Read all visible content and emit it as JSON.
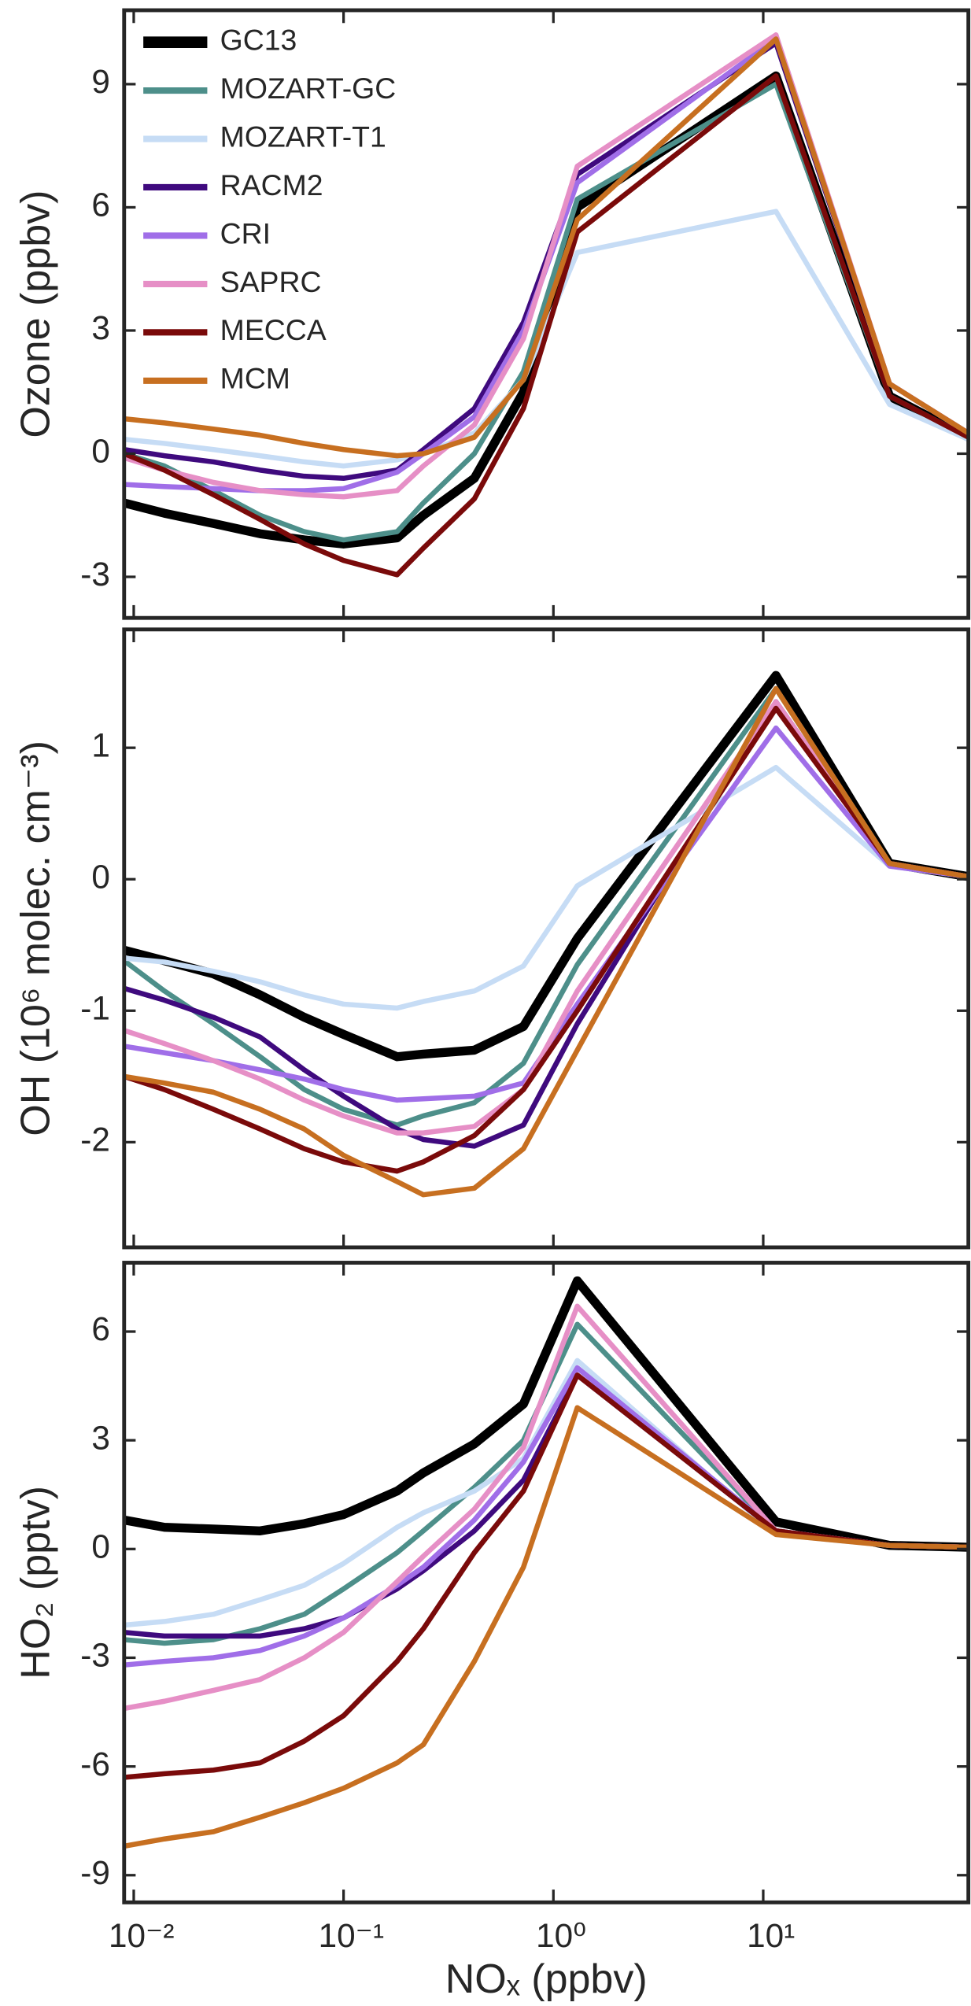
{
  "chart_data": [
    {
      "type": "line",
      "ylabel": "Ozone (ppbv)",
      "log_x": true,
      "legend": "upper left",
      "xlim": [
        0.009,
        95
      ],
      "xticks": [
        0.01,
        0.1,
        1,
        10
      ],
      "ylim": [
        -4,
        10.8
      ],
      "yticks": [
        -3,
        0,
        3,
        6,
        9
      ],
      "x": [
        0.009,
        0.014,
        0.024,
        0.04,
        0.065,
        0.1,
        0.18,
        0.24,
        0.42,
        0.72,
        1.3,
        11.5,
        40,
        95
      ],
      "series": [
        {
          "name": "GC13",
          "color": "#000000",
          "values": [
            -1.2,
            -1.45,
            -1.7,
            -1.95,
            -2.1,
            -2.2,
            -2.05,
            -1.5,
            -0.6,
            1.5,
            6.0,
            9.2,
            1.4,
            0.4
          ]
        },
        {
          "name": "MOZART-GC",
          "color": "#4d8f8a",
          "values": [
            0.0,
            -0.3,
            -0.9,
            -1.5,
            -1.9,
            -2.1,
            -1.9,
            -1.2,
            0.0,
            2.0,
            6.2,
            9.0,
            1.4,
            0.4
          ]
        },
        {
          "name": "MOZART-T1",
          "color": "#c6dcf5",
          "values": [
            0.35,
            0.25,
            0.1,
            -0.05,
            -0.2,
            -0.3,
            -0.15,
            0.0,
            0.5,
            1.8,
            4.9,
            5.9,
            1.2,
            0.35
          ]
        },
        {
          "name": "RACM2",
          "color": "#3f0a7e",
          "values": [
            0.1,
            -0.05,
            -0.2,
            -0.4,
            -0.55,
            -0.6,
            -0.4,
            0.1,
            1.1,
            3.2,
            6.8,
            10.0,
            1.7,
            0.5
          ]
        },
        {
          "name": "CRI",
          "color": "#a06ee8",
          "values": [
            -0.75,
            -0.8,
            -0.85,
            -0.9,
            -0.9,
            -0.85,
            -0.45,
            0.0,
            0.9,
            3.0,
            6.6,
            10.1,
            1.7,
            0.5
          ]
        },
        {
          "name": "SAPRC",
          "color": "#e68fc6",
          "values": [
            -0.1,
            -0.4,
            -0.7,
            -0.9,
            -1.0,
            -1.05,
            -0.9,
            -0.3,
            0.7,
            2.8,
            7.0,
            10.2,
            1.7,
            0.5
          ]
        },
        {
          "name": "MECCA",
          "color": "#7a0a0a",
          "values": [
            0.0,
            -0.4,
            -1.0,
            -1.6,
            -2.2,
            -2.6,
            -2.95,
            -2.3,
            -1.1,
            1.1,
            5.4,
            9.2,
            1.4,
            0.4
          ]
        },
        {
          "name": "MCM",
          "color": "#c76f20",
          "values": [
            0.85,
            0.75,
            0.6,
            0.45,
            0.25,
            0.1,
            -0.05,
            0.0,
            0.4,
            1.8,
            5.7,
            10.1,
            1.7,
            0.5
          ]
        }
      ]
    },
    {
      "type": "line",
      "ylabel": "OH (10⁶ molec. cm⁻³)",
      "log_x": true,
      "xlim": [
        0.009,
        95
      ],
      "xticks": [
        0.01,
        0.1,
        1,
        10
      ],
      "ylim": [
        -2.8,
        1.9
      ],
      "yticks": [
        -2,
        -1,
        0,
        1
      ],
      "x": [
        0.009,
        0.014,
        0.024,
        0.04,
        0.065,
        0.1,
        0.18,
        0.24,
        0.42,
        0.72,
        1.3,
        11.5,
        40,
        95
      ],
      "series": [
        {
          "color": "#000000",
          "values": [
            -0.54,
            -0.62,
            -0.72,
            -0.88,
            -1.05,
            -1.18,
            -1.35,
            -1.33,
            -1.3,
            -1.12,
            -0.45,
            1.55,
            0.12,
            0.02
          ]
        },
        {
          "color": "#4d8f8a",
          "values": [
            -0.62,
            -0.85,
            -1.1,
            -1.35,
            -1.6,
            -1.75,
            -1.87,
            -1.8,
            -1.7,
            -1.4,
            -0.65,
            1.45,
            0.12,
            0.02
          ]
        },
        {
          "color": "#c6dcf5",
          "values": [
            -0.6,
            -0.63,
            -0.7,
            -0.78,
            -0.88,
            -0.95,
            -0.98,
            -0.93,
            -0.85,
            -0.66,
            -0.05,
            0.85,
            0.1,
            0.02
          ]
        },
        {
          "color": "#3f0a7e",
          "values": [
            -0.83,
            -0.92,
            -1.05,
            -1.2,
            -1.45,
            -1.65,
            -1.9,
            -1.98,
            -2.03,
            -1.87,
            -1.1,
            1.35,
            0.12,
            0.02
          ]
        },
        {
          "color": "#a06ee8",
          "values": [
            -1.27,
            -1.32,
            -1.38,
            -1.45,
            -1.52,
            -1.6,
            -1.68,
            -1.67,
            -1.65,
            -1.55,
            -0.95,
            1.15,
            0.1,
            0.02
          ]
        },
        {
          "color": "#e68fc6",
          "values": [
            -1.15,
            -1.25,
            -1.38,
            -1.52,
            -1.68,
            -1.8,
            -1.93,
            -1.93,
            -1.88,
            -1.6,
            -0.85,
            1.35,
            0.12,
            0.02
          ]
        },
        {
          "color": "#7a0a0a",
          "values": [
            -1.5,
            -1.6,
            -1.75,
            -1.9,
            -2.05,
            -2.15,
            -2.22,
            -2.15,
            -1.95,
            -1.6,
            -1.0,
            1.3,
            0.12,
            0.02
          ]
        },
        {
          "color": "#c76f20",
          "values": [
            -1.5,
            -1.55,
            -1.62,
            -1.75,
            -1.9,
            -2.1,
            -2.3,
            -2.4,
            -2.35,
            -2.05,
            -1.3,
            1.45,
            0.12,
            0.02
          ]
        }
      ]
    },
    {
      "type": "line",
      "ylabel": "HO₂ (pptv)",
      "xlabel": "NOₓ (ppbv)",
      "log_x": true,
      "xlim": [
        0.009,
        95
      ],
      "xticks": [
        {
          "value": 0.01,
          "label": "10⁻²"
        },
        {
          "value": 0.1,
          "label": "10⁻¹"
        },
        {
          "value": 1,
          "label": "10⁰"
        },
        {
          "value": 10,
          "label": "10¹"
        }
      ],
      "ylim": [
        -9.75,
        7.9
      ],
      "yticks": [
        -9,
        -6,
        -3,
        0,
        3,
        6
      ],
      "x": [
        0.009,
        0.014,
        0.024,
        0.04,
        0.065,
        0.1,
        0.18,
        0.24,
        0.42,
        0.72,
        1.3,
        11.5,
        40,
        95
      ],
      "series": [
        {
          "color": "#000000",
          "values": [
            0.8,
            0.6,
            0.55,
            0.5,
            0.7,
            0.95,
            1.6,
            2.1,
            2.9,
            4.0,
            7.4,
            0.75,
            0.1,
            0.05
          ]
        },
        {
          "color": "#4d8f8a",
          "values": [
            -2.5,
            -2.6,
            -2.5,
            -2.2,
            -1.8,
            -1.1,
            -0.1,
            0.5,
            1.7,
            3.0,
            6.2,
            0.5,
            0.1,
            0.05
          ]
        },
        {
          "color": "#c6dcf5",
          "values": [
            -2.1,
            -2.0,
            -1.8,
            -1.4,
            -1.0,
            -0.4,
            0.6,
            1.0,
            1.6,
            2.5,
            5.2,
            0.4,
            0.1,
            0.05
          ]
        },
        {
          "color": "#3f0a7e",
          "values": [
            -2.3,
            -2.4,
            -2.4,
            -2.4,
            -2.2,
            -1.9,
            -1.1,
            -0.6,
            0.5,
            1.9,
            4.8,
            0.5,
            0.1,
            0.05
          ]
        },
        {
          "color": "#a06ee8",
          "values": [
            -3.2,
            -3.1,
            -3.0,
            -2.8,
            -2.4,
            -1.9,
            -1.0,
            -0.5,
            0.8,
            2.4,
            5.0,
            0.5,
            0.1,
            0.05
          ]
        },
        {
          "color": "#e68fc6",
          "values": [
            -4.4,
            -4.2,
            -3.9,
            -3.6,
            -3.0,
            -2.3,
            -0.9,
            -0.2,
            1.1,
            2.8,
            6.7,
            0.5,
            0.1,
            0.05
          ]
        },
        {
          "color": "#7a0a0a",
          "values": [
            -6.3,
            -6.2,
            -6.1,
            -5.9,
            -5.3,
            -4.6,
            -3.1,
            -2.2,
            -0.1,
            1.6,
            4.8,
            0.5,
            0.1,
            0.05
          ]
        },
        {
          "color": "#c76f20",
          "values": [
            -8.2,
            -8.0,
            -7.8,
            -7.4,
            -7.0,
            -6.6,
            -5.9,
            -5.4,
            -3.1,
            -0.5,
            3.9,
            0.4,
            0.1,
            0.05
          ]
        }
      ]
    }
  ]
}
